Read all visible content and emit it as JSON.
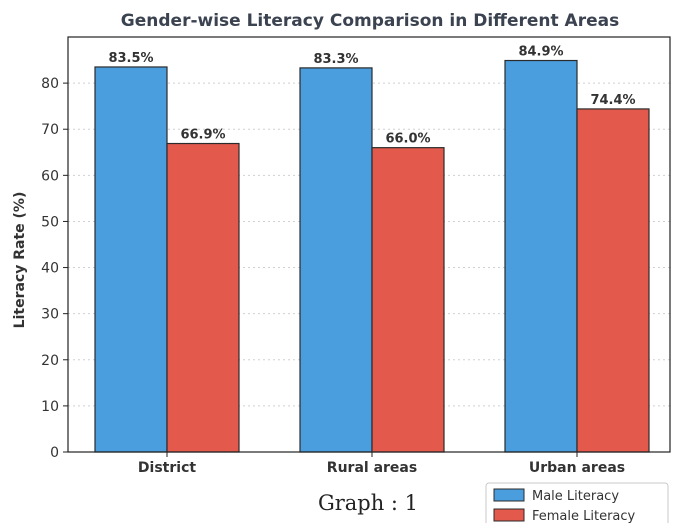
{
  "chart_data": {
    "type": "bar",
    "title": "Gender-wise Literacy Comparison in Different Areas",
    "xlabel": "",
    "ylabel": "Literacy Rate (%)",
    "categories": [
      "District",
      "Rural areas",
      "Urban areas"
    ],
    "series": [
      {
        "name": "Male Literacy",
        "values": [
          83.5,
          83.3,
          84.9
        ],
        "labels": [
          "83.5%",
          "83.3%",
          "84.9%"
        ],
        "color": "#4a9ede"
      },
      {
        "name": "Female Literacy",
        "values": [
          66.9,
          66.0,
          74.4
        ],
        "labels": [
          "66.9%",
          "66.0%",
          "74.4%"
        ],
        "color": "#e35a4d"
      }
    ],
    "yticks": [
      0,
      10,
      20,
      30,
      40,
      50,
      60,
      70,
      80
    ],
    "ylim": [
      0,
      90
    ],
    "grid": true,
    "legend_position": "bottom-right",
    "caption": "Graph : 1"
  }
}
